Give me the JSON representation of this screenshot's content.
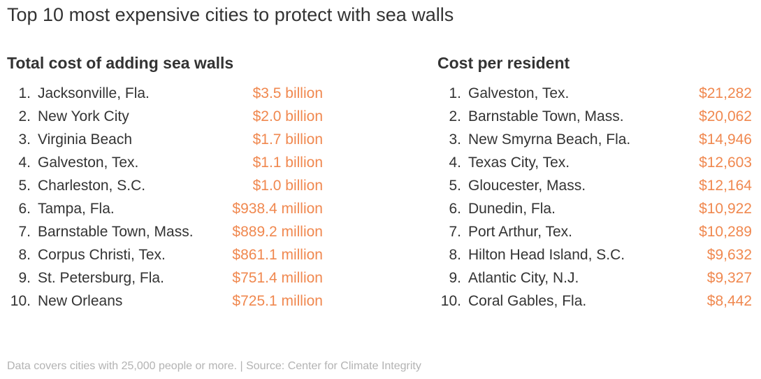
{
  "title": "Top 10 most expensive cities to protect with sea walls",
  "chart_data": [
    {
      "type": "table",
      "title": "Total cost of adding sea walls",
      "categories": [
        "Jacksonville, Fla.",
        "New York City",
        "Virginia Beach",
        "Galveston, Tex.",
        "Charleston, S.C.",
        "Tampa, Fla.",
        "Barnstable Town, Mass.",
        "Corpus Christi, Tex.",
        "St. Petersburg, Fla.",
        "New Orleans"
      ],
      "values": [
        3500,
        2000,
        1700,
        1100,
        1000,
        938.4,
        889.2,
        861.1,
        751.4,
        725.1
      ],
      "unit": "millions of dollars",
      "rows": [
        {
          "rank": "1.",
          "city": "Jacksonville, Fla.",
          "value": "$3.5 billion"
        },
        {
          "rank": "2.",
          "city": "New York City",
          "value": "$2.0 billion"
        },
        {
          "rank": "3.",
          "city": "Virginia Beach",
          "value": "$1.7 billion"
        },
        {
          "rank": "4.",
          "city": "Galveston, Tex.",
          "value": "$1.1 billion"
        },
        {
          "rank": "5.",
          "city": "Charleston, S.C.",
          "value": "$1.0 billion"
        },
        {
          "rank": "6.",
          "city": "Tampa, Fla.",
          "value": "$938.4 million"
        },
        {
          "rank": "7.",
          "city": "Barnstable Town, Mass.",
          "value": "$889.2 million"
        },
        {
          "rank": "8.",
          "city": "Corpus Christi, Tex.",
          "value": "$861.1 million"
        },
        {
          "rank": "9.",
          "city": "St. Petersburg, Fla.",
          "value": "$751.4 million"
        },
        {
          "rank": "10.",
          "city": "New Orleans",
          "value": "$725.1 million"
        }
      ]
    },
    {
      "type": "table",
      "title": "Cost per resident",
      "categories": [
        "Galveston, Tex.",
        "Barnstable Town, Mass.",
        "New Smyrna Beach, Fla.",
        "Texas City, Tex.",
        "Gloucester, Mass.",
        "Dunedin, Fla.",
        "Port Arthur, Tex.",
        "Hilton Head Island, S.C.",
        "Atlantic City, N.J.",
        "Coral Gables, Fla."
      ],
      "values": [
        21282,
        20062,
        14946,
        12603,
        12164,
        10922,
        10289,
        9632,
        9327,
        8442
      ],
      "unit": "dollars",
      "rows": [
        {
          "rank": "1.",
          "city": "Galveston, Tex.",
          "value": "$21,282"
        },
        {
          "rank": "2.",
          "city": "Barnstable Town, Mass.",
          "value": "$20,062"
        },
        {
          "rank": "3.",
          "city": "New Smyrna Beach, Fla.",
          "value": "$14,946"
        },
        {
          "rank": "4.",
          "city": "Texas City, Tex.",
          "value": "$12,603"
        },
        {
          "rank": "5.",
          "city": "Gloucester, Mass.",
          "value": "$12,164"
        },
        {
          "rank": "6.",
          "city": "Dunedin, Fla.",
          "value": "$10,922"
        },
        {
          "rank": "7.",
          "city": "Port Arthur, Tex.",
          "value": "$10,289"
        },
        {
          "rank": "8.",
          "city": "Hilton Head Island, S.C.",
          "value": "$9,632"
        },
        {
          "rank": "9.",
          "city": "Atlantic City, N.J.",
          "value": "$9,327"
        },
        {
          "rank": "10.",
          "city": "Coral Gables, Fla.",
          "value": "$8,442"
        }
      ]
    }
  ],
  "footnote": "Data covers cities with 25,000 people or more. | Source: Center for Climate Integrity",
  "colors": {
    "text": "#333333",
    "value_accent": "#f0884f",
    "footnote": "#b3b3b3"
  }
}
